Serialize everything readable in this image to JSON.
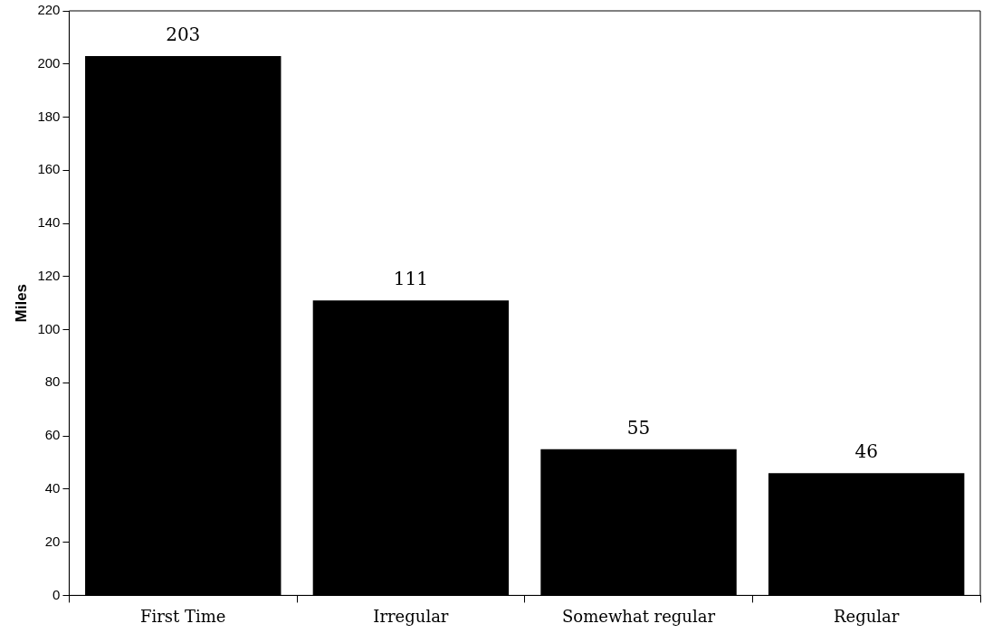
{
  "chart_data": {
    "type": "bar",
    "ylabel": "Miles",
    "categories": [
      "First Time",
      "Irregular",
      "Somewhat regular",
      "Regular"
    ],
    "values": [
      203,
      111,
      55,
      46
    ],
    "color": "#000000",
    "ylim": [
      0,
      220
    ],
    "yticks": [
      0,
      20,
      40,
      60,
      80,
      100,
      120,
      140,
      160,
      180,
      200,
      220
    ],
    "grid": false,
    "legend": false,
    "data_labels": true
  }
}
